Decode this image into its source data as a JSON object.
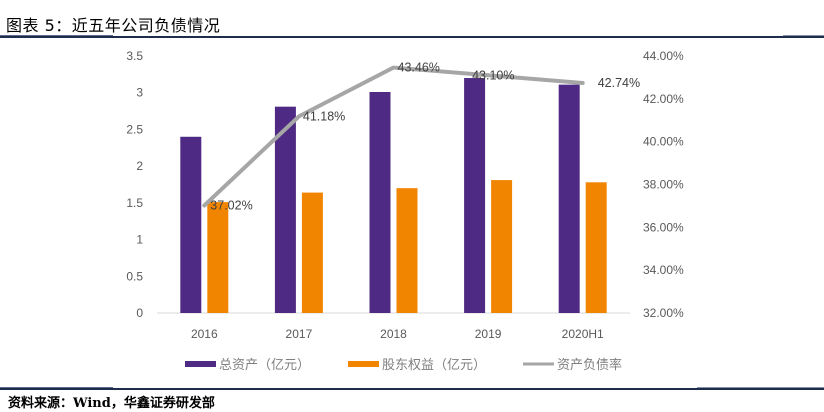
{
  "header": {
    "title": "图表 5：近五年公司负债情况"
  },
  "footer": {
    "source": "资料来源：Wind，华鑫证券研发部"
  },
  "colors": {
    "total_assets": "#4e2a84",
    "equity": "#f28500",
    "ratio_line": "#a6a6a6",
    "rule": "#1f2d4d"
  },
  "chart_data": {
    "type": "bar",
    "title": "近五年公司负债情况",
    "categories": [
      "2016",
      "2017",
      "2018",
      "2019",
      "2020H1"
    ],
    "series": [
      {
        "name": "总资产（亿元）",
        "type": "bar",
        "axis": "left",
        "values": [
          2.4,
          2.81,
          3.01,
          3.2,
          3.11
        ]
      },
      {
        "name": "股东权益（亿元）",
        "type": "bar",
        "axis": "left",
        "values": [
          1.51,
          1.64,
          1.7,
          1.81,
          1.78
        ]
      },
      {
        "name": "资产负债率",
        "type": "line",
        "axis": "right",
        "values": [
          37.02,
          41.18,
          43.46,
          43.1,
          42.74
        ],
        "labels": [
          "37.02%",
          "41.18%",
          "43.46%",
          "43.10%",
          "42.74%"
        ]
      }
    ],
    "y_left": {
      "range": [
        0,
        3.5
      ],
      "ticks": [
        "0",
        "0.5",
        "1",
        "1.5",
        "2",
        "2.5",
        "3",
        "3.5"
      ],
      "tick_values": [
        0,
        0.5,
        1,
        1.5,
        2,
        2.5,
        3,
        3.5
      ]
    },
    "y_right": {
      "range": [
        32,
        44
      ],
      "ticks": [
        "32.00%",
        "34.00%",
        "36.00%",
        "38.00%",
        "40.00%",
        "42.00%",
        "44.00%"
      ],
      "tick_values": [
        32,
        34,
        36,
        38,
        40,
        42,
        44
      ]
    },
    "xlabel": "",
    "ylabel": "",
    "grid": false,
    "legend": {
      "placement": "bottom",
      "entries": [
        "总资产（亿元）",
        "股东权益（亿元）",
        "资产负债率"
      ]
    }
  }
}
